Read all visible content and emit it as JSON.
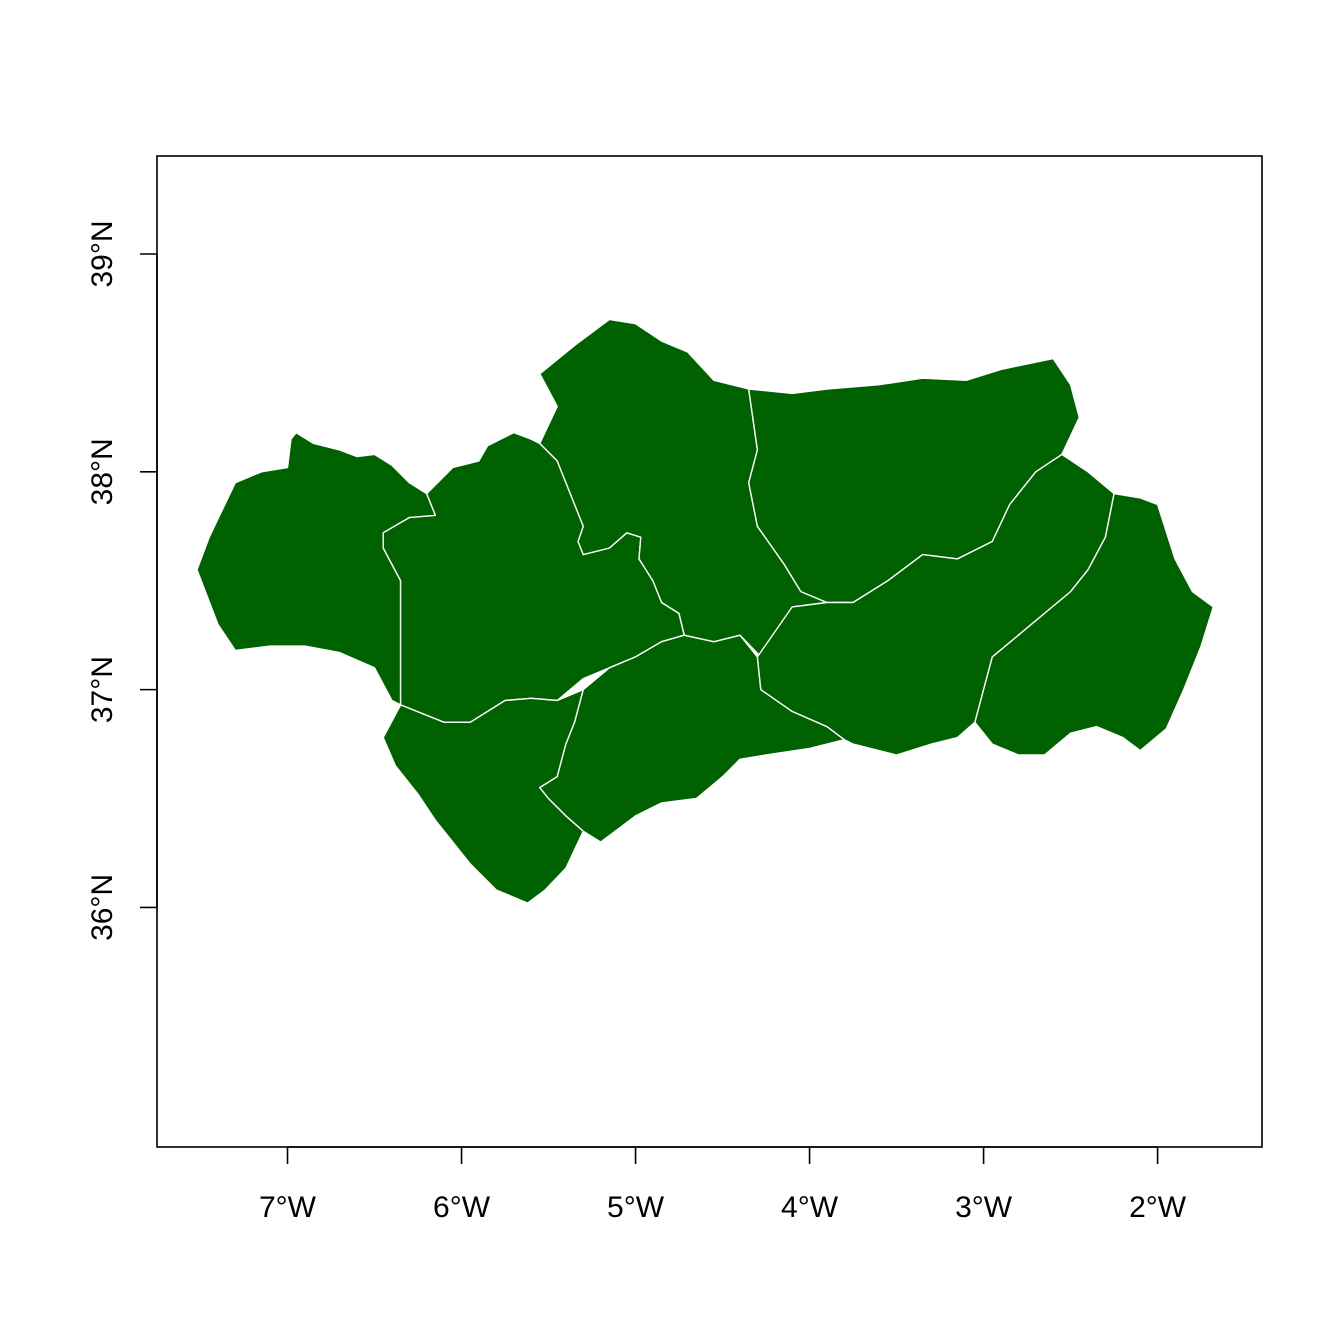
{
  "colors": {
    "fill": "#006100",
    "border": "#ffffff",
    "background": "#ffffff",
    "axis": "#000000"
  },
  "map": {
    "projection": "longlat",
    "xlim": [
      -7.75,
      -1.4
    ],
    "ylim": [
      34.9,
      39.45
    ],
    "x_ticks": [
      {
        "value": -7,
        "label": "7°W"
      },
      {
        "value": -6,
        "label": "6°W"
      },
      {
        "value": -5,
        "label": "5°W"
      },
      {
        "value": -4,
        "label": "4°W"
      },
      {
        "value": -3,
        "label": "3°W"
      },
      {
        "value": -2,
        "label": "2°W"
      }
    ],
    "y_ticks": [
      {
        "value": 36,
        "label": "36°N"
      },
      {
        "value": 37,
        "label": "37°N"
      },
      {
        "value": 38,
        "label": "38°N"
      },
      {
        "value": 39,
        "label": "39°N"
      }
    ],
    "regions": [
      {
        "id": "huelva",
        "outline": [
          [
            -6.95,
            38.18
          ],
          [
            -6.85,
            38.13
          ],
          [
            -6.7,
            38.1
          ],
          [
            -6.6,
            38.07
          ],
          [
            -6.5,
            38.08
          ],
          [
            -6.4,
            38.03
          ],
          [
            -6.3,
            37.95
          ],
          [
            -6.2,
            37.9
          ],
          [
            -6.15,
            37.8
          ],
          [
            -6.3,
            37.79
          ],
          [
            -6.45,
            37.72
          ],
          [
            -6.45,
            37.65
          ],
          [
            -6.35,
            37.5
          ],
          [
            -6.35,
            37.3
          ],
          [
            -6.35,
            37.05
          ],
          [
            -6.35,
            36.93
          ],
          [
            -6.4,
            36.95
          ],
          [
            -6.5,
            37.1
          ],
          [
            -6.7,
            37.17
          ],
          [
            -6.9,
            37.2
          ],
          [
            -7.1,
            37.2
          ],
          [
            -7.3,
            37.18
          ],
          [
            -7.4,
            37.3
          ],
          [
            -7.52,
            37.55
          ],
          [
            -7.45,
            37.7
          ],
          [
            -7.3,
            37.95
          ],
          [
            -7.15,
            38.0
          ],
          [
            -7.0,
            38.02
          ],
          [
            -6.98,
            38.15
          ]
        ]
      },
      {
        "id": "sevilla",
        "outline": [
          [
            -6.15,
            37.8
          ],
          [
            -6.2,
            37.9
          ],
          [
            -6.05,
            38.02
          ],
          [
            -5.9,
            38.05
          ],
          [
            -5.85,
            38.12
          ],
          [
            -5.7,
            38.18
          ],
          [
            -5.6,
            38.15
          ],
          [
            -5.55,
            38.13
          ],
          [
            -5.45,
            38.05
          ],
          [
            -5.35,
            37.85
          ],
          [
            -5.3,
            37.75
          ],
          [
            -5.33,
            37.68
          ],
          [
            -5.3,
            37.62
          ],
          [
            -5.15,
            37.65
          ],
          [
            -5.05,
            37.72
          ],
          [
            -4.97,
            37.7
          ],
          [
            -4.98,
            37.6
          ],
          [
            -4.9,
            37.5
          ],
          [
            -4.85,
            37.4
          ],
          [
            -4.75,
            37.35
          ],
          [
            -4.72,
            37.25
          ],
          [
            -4.85,
            37.22
          ],
          [
            -5.0,
            37.15
          ],
          [
            -5.15,
            37.1
          ],
          [
            -5.3,
            37.05
          ],
          [
            -5.45,
            36.95
          ],
          [
            -5.6,
            36.96
          ],
          [
            -5.75,
            36.95
          ],
          [
            -5.95,
            36.85
          ],
          [
            -6.1,
            36.85
          ],
          [
            -6.35,
            36.93
          ],
          [
            -6.35,
            37.05
          ],
          [
            -6.35,
            37.3
          ],
          [
            -6.35,
            37.5
          ],
          [
            -6.45,
            37.65
          ],
          [
            -6.45,
            37.72
          ],
          [
            -6.3,
            37.79
          ]
        ]
      },
      {
        "id": "cadiz",
        "outline": [
          [
            -6.35,
            36.93
          ],
          [
            -6.1,
            36.85
          ],
          [
            -5.95,
            36.85
          ],
          [
            -5.75,
            36.95
          ],
          [
            -5.6,
            36.96
          ],
          [
            -5.45,
            36.95
          ],
          [
            -5.3,
            37.0
          ],
          [
            -5.35,
            36.85
          ],
          [
            -5.4,
            36.75
          ],
          [
            -5.45,
            36.6
          ],
          [
            -5.55,
            36.55
          ],
          [
            -5.5,
            36.5
          ],
          [
            -5.4,
            36.42
          ],
          [
            -5.3,
            36.35
          ],
          [
            -5.4,
            36.18
          ],
          [
            -5.52,
            36.08
          ],
          [
            -5.62,
            36.02
          ],
          [
            -5.8,
            36.08
          ],
          [
            -5.95,
            36.2
          ],
          [
            -6.05,
            36.3
          ],
          [
            -6.15,
            36.4
          ],
          [
            -6.25,
            36.52
          ],
          [
            -6.38,
            36.65
          ],
          [
            -6.45,
            36.78
          ]
        ]
      },
      {
        "id": "malaga",
        "outline": [
          [
            -5.3,
            37.0
          ],
          [
            -5.15,
            37.1
          ],
          [
            -5.0,
            37.15
          ],
          [
            -4.85,
            37.22
          ],
          [
            -4.72,
            37.25
          ],
          [
            -4.55,
            37.22
          ],
          [
            -4.4,
            37.25
          ],
          [
            -4.3,
            37.15
          ],
          [
            -4.28,
            37.0
          ],
          [
            -4.1,
            36.9
          ],
          [
            -3.9,
            36.83
          ],
          [
            -3.8,
            36.77
          ],
          [
            -4.0,
            36.73
          ],
          [
            -4.25,
            36.7
          ],
          [
            -4.4,
            36.68
          ],
          [
            -4.5,
            36.6
          ],
          [
            -4.65,
            36.5
          ],
          [
            -4.85,
            36.48
          ],
          [
            -5.0,
            36.42
          ],
          [
            -5.1,
            36.36
          ],
          [
            -5.2,
            36.3
          ],
          [
            -5.3,
            36.35
          ],
          [
            -5.4,
            36.42
          ],
          [
            -5.5,
            36.5
          ],
          [
            -5.55,
            36.55
          ],
          [
            -5.45,
            36.6
          ],
          [
            -5.4,
            36.75
          ],
          [
            -5.35,
            36.85
          ]
        ]
      },
      {
        "id": "cordoba",
        "outline": [
          [
            -5.55,
            38.13
          ],
          [
            -5.45,
            38.3
          ],
          [
            -5.55,
            38.45
          ],
          [
            -5.35,
            38.58
          ],
          [
            -5.15,
            38.7
          ],
          [
            -5.0,
            38.68
          ],
          [
            -4.85,
            38.6
          ],
          [
            -4.7,
            38.55
          ],
          [
            -4.55,
            38.42
          ],
          [
            -4.35,
            38.38
          ],
          [
            -4.3,
            38.1
          ],
          [
            -4.35,
            37.95
          ],
          [
            -4.3,
            37.75
          ],
          [
            -4.15,
            37.58
          ],
          [
            -4.05,
            37.45
          ],
          [
            -3.9,
            37.4
          ],
          [
            -4.1,
            37.38
          ],
          [
            -4.28,
            37.15
          ],
          [
            -4.4,
            37.25
          ],
          [
            -4.55,
            37.22
          ],
          [
            -4.72,
            37.25
          ],
          [
            -4.75,
            37.35
          ],
          [
            -4.85,
            37.4
          ],
          [
            -4.9,
            37.5
          ],
          [
            -4.98,
            37.6
          ],
          [
            -4.97,
            37.7
          ],
          [
            -5.05,
            37.72
          ],
          [
            -5.15,
            37.65
          ],
          [
            -5.3,
            37.62
          ],
          [
            -5.33,
            37.68
          ],
          [
            -5.3,
            37.75
          ],
          [
            -5.35,
            37.85
          ],
          [
            -5.45,
            38.05
          ]
        ]
      },
      {
        "id": "jaen",
        "outline": [
          [
            -4.35,
            38.38
          ],
          [
            -4.1,
            38.36
          ],
          [
            -3.9,
            38.38
          ],
          [
            -3.6,
            38.4
          ],
          [
            -3.35,
            38.43
          ],
          [
            -3.1,
            38.42
          ],
          [
            -2.9,
            38.47
          ],
          [
            -2.6,
            38.52
          ],
          [
            -2.5,
            38.4
          ],
          [
            -2.45,
            38.25
          ],
          [
            -2.55,
            38.08
          ],
          [
            -2.7,
            38.0
          ],
          [
            -2.85,
            37.85
          ],
          [
            -2.95,
            37.68
          ],
          [
            -3.15,
            37.6
          ],
          [
            -3.35,
            37.62
          ],
          [
            -3.55,
            37.5
          ],
          [
            -3.75,
            37.4
          ],
          [
            -3.9,
            37.4
          ],
          [
            -4.05,
            37.45
          ],
          [
            -4.15,
            37.58
          ],
          [
            -4.3,
            37.75
          ],
          [
            -4.35,
            37.95
          ],
          [
            -4.3,
            38.1
          ]
        ]
      },
      {
        "id": "granada",
        "outline": [
          [
            -2.55,
            38.08
          ],
          [
            -2.4,
            38.0
          ],
          [
            -2.25,
            37.9
          ],
          [
            -2.3,
            37.7
          ],
          [
            -2.4,
            37.55
          ],
          [
            -2.5,
            37.45
          ],
          [
            -2.65,
            37.35
          ],
          [
            -2.8,
            37.25
          ],
          [
            -2.95,
            37.15
          ],
          [
            -3.0,
            37.0
          ],
          [
            -3.05,
            36.85
          ],
          [
            -3.15,
            36.78
          ],
          [
            -3.3,
            36.75
          ],
          [
            -3.5,
            36.7
          ],
          [
            -3.75,
            36.75
          ],
          [
            -3.8,
            36.77
          ],
          [
            -3.9,
            36.83
          ],
          [
            -4.1,
            36.9
          ],
          [
            -4.28,
            37.0
          ],
          [
            -4.3,
            37.15
          ],
          [
            -4.1,
            37.38
          ],
          [
            -3.9,
            37.4
          ],
          [
            -3.75,
            37.4
          ],
          [
            -3.55,
            37.5
          ],
          [
            -3.35,
            37.62
          ],
          [
            -3.15,
            37.6
          ],
          [
            -2.95,
            37.68
          ],
          [
            -2.85,
            37.85
          ],
          [
            -2.7,
            38.0
          ]
        ]
      },
      {
        "id": "almeria",
        "outline": [
          [
            -2.25,
            37.9
          ],
          [
            -2.1,
            37.88
          ],
          [
            -2.0,
            37.85
          ],
          [
            -1.9,
            37.6
          ],
          [
            -1.8,
            37.45
          ],
          [
            -1.68,
            37.38
          ],
          [
            -1.75,
            37.2
          ],
          [
            -1.85,
            37.0
          ],
          [
            -1.95,
            36.82
          ],
          [
            -2.1,
            36.72
          ],
          [
            -2.2,
            36.78
          ],
          [
            -2.35,
            36.83
          ],
          [
            -2.5,
            36.8
          ],
          [
            -2.65,
            36.7
          ],
          [
            -2.8,
            36.7
          ],
          [
            -2.95,
            36.75
          ],
          [
            -3.05,
            36.85
          ],
          [
            -3.0,
            37.0
          ],
          [
            -2.95,
            37.15
          ],
          [
            -2.8,
            37.25
          ],
          [
            -2.65,
            37.35
          ],
          [
            -2.5,
            37.45
          ],
          [
            -2.4,
            37.55
          ],
          [
            -2.3,
            37.7
          ]
        ]
      }
    ]
  }
}
